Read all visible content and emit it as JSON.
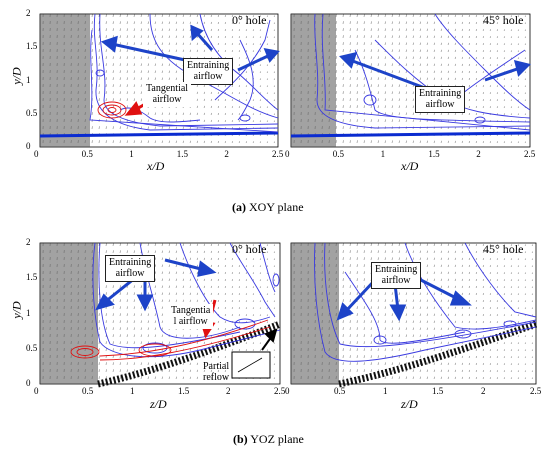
{
  "panels": [
    {
      "id": "a-left",
      "title": "0° hole",
      "xlabel": "x/D",
      "ylabel": "y/D",
      "xticks": [
        "0",
        "0.5",
        "1",
        "1.5",
        "2",
        "2.5"
      ],
      "yticks": [
        "0",
        "0.5",
        "1",
        "1.5",
        "2"
      ],
      "labels": {
        "entraining": [
          "Entraining",
          "airflow"
        ],
        "tangential": [
          "Tangential",
          "airflow"
        ]
      }
    },
    {
      "id": "a-right",
      "title": "45° hole",
      "xlabel": "x/D",
      "ylabel": "",
      "xticks": [
        "0",
        "0.5",
        "1",
        "1.5",
        "2",
        "2.5"
      ],
      "yticks": [],
      "labels": {
        "entraining": [
          "Entraining",
          "airflow"
        ]
      }
    },
    {
      "id": "b-left",
      "title": "0° hole",
      "xlabel": "z/D",
      "ylabel": "y/D",
      "xticks": [
        "0",
        "0.5",
        "1",
        "1.5",
        "2",
        "2.5"
      ],
      "yticks": [
        "0",
        "0.5",
        "1",
        "1.5",
        "2"
      ],
      "labels": {
        "entraining": [
          "Entraining",
          "airflow"
        ],
        "tangential": [
          "Tangentia",
          "l airflow"
        ],
        "partial": [
          "Partial",
          "reflow"
        ]
      }
    },
    {
      "id": "b-right",
      "title": "45° hole",
      "xlabel": "z/D",
      "ylabel": "",
      "xticks": [
        "0",
        "0.5",
        "1",
        "1.5",
        "2",
        "2.5"
      ],
      "yticks": [],
      "labels": {
        "entraining": [
          "Entraining",
          "airflow"
        ]
      }
    }
  ],
  "captions": {
    "a": {
      "letter": "(a)",
      "text": "XOY plane"
    },
    "b": {
      "letter": "(b)",
      "text": "YOZ plane"
    }
  },
  "colors": {
    "streamline": "#3a3ae0",
    "arrow_blue": "#1d43c8",
    "arrow_red": "#e01010",
    "vector": "#222222",
    "wall": "#0a2bd0"
  }
}
